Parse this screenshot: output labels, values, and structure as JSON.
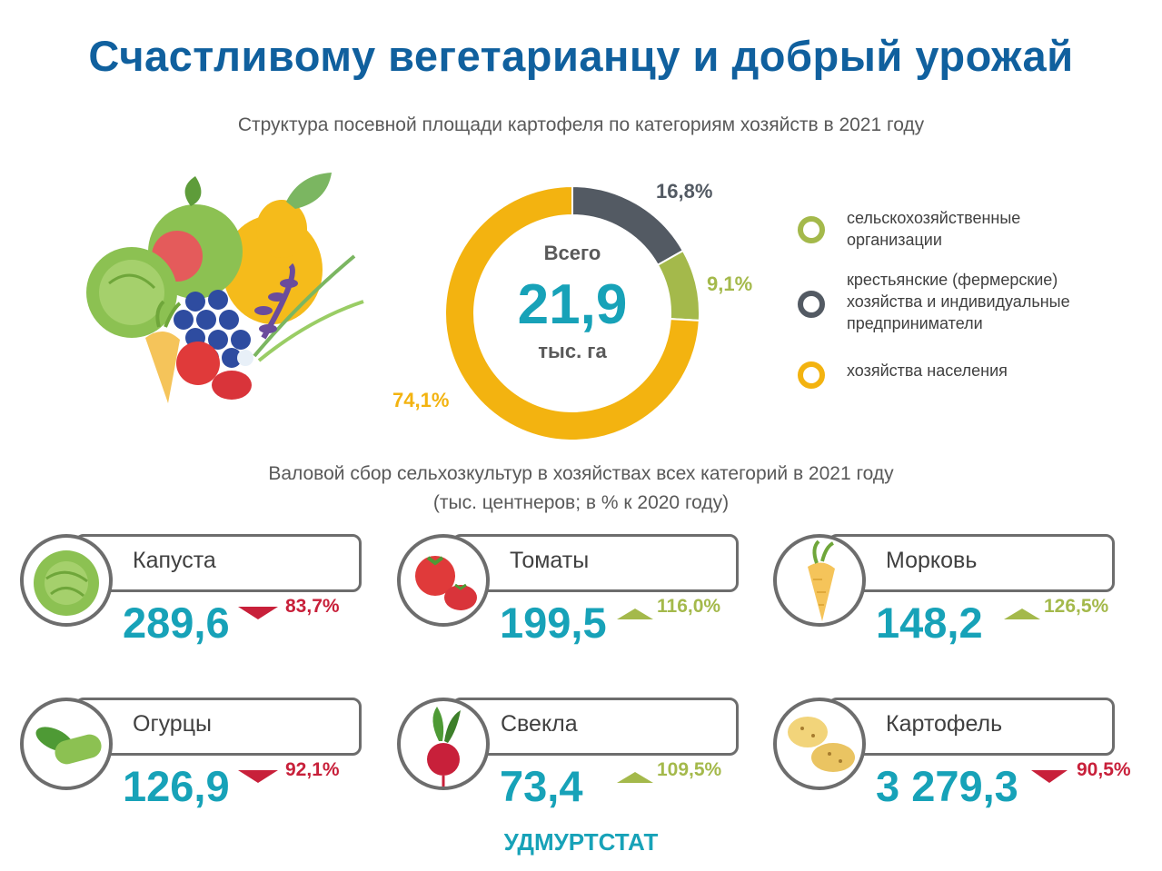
{
  "title": "Счастливому вегетарианцу и добрый урожай",
  "colors": {
    "title": "#10609E",
    "accent": "#17A2B8",
    "agricultural": "#A4B94B",
    "farms": "#535A63",
    "households": "#F3B310",
    "increase": "#A4B94B",
    "decrease": "#C8203A"
  },
  "donut": {
    "center_label": "Всего",
    "center_value": "21,9",
    "center_unit": "тыс. га"
  },
  "legend": [
    {
      "label": "сельскохозяйственные организации",
      "color": "#A4B94B"
    },
    {
      "label": "крестьянские (фермерские) хозяйства и индивидуальные предприниматели",
      "color": "#535A63"
    },
    {
      "label": "хозяйства населения",
      "color": "#F3B310"
    }
  ],
  "crops_subtitle_line1": "Валовой сбор сельхозкультур в хозяйствах всех категорий в 2021 году",
  "crops_subtitle_line2": "(тыс. центнеров; в % к 2020 году)",
  "crops": [
    {
      "name": "Капуста",
      "value": "289,6",
      "pct": "83,7%",
      "trend": "down",
      "icon": "cabbage-icon"
    },
    {
      "name": "Томаты",
      "value": "199,5",
      "pct": "116,0%",
      "trend": "up",
      "icon": "tomato-icon"
    },
    {
      "name": "Морковь",
      "value": "148,2",
      "pct": "126,5%",
      "trend": "up",
      "icon": "carrot-icon"
    },
    {
      "name": "Огурцы",
      "value": "126,9",
      "pct": "92,1%",
      "trend": "down",
      "icon": "cucumber-icon"
    },
    {
      "name": "Свекла",
      "value": "73,4",
      "pct": "109,5%",
      "trend": "up",
      "icon": "beet-icon"
    },
    {
      "name": "Картофель",
      "value": "3 279,3",
      "pct": "90,5%",
      "trend": "down",
      "icon": "potato-icon"
    }
  ],
  "footer": "УДМУРТСТАТ",
  "chart_data": {
    "type": "pie",
    "title": "Структура посевной площади картофеля по категориям хозяйств в 2021 году",
    "categories": [
      "крестьянские (фермерские) хозяйства и индивидуальные предприниматели",
      "сельскохозяйственные организации",
      "хозяйства населения"
    ],
    "values": [
      16.8,
      9.1,
      74.1
    ],
    "labels": [
      "16,8%",
      "9,1%",
      "74,1%"
    ],
    "colors": [
      "#535A63",
      "#A4B94B",
      "#F3B310"
    ],
    "legend_position": "right"
  }
}
